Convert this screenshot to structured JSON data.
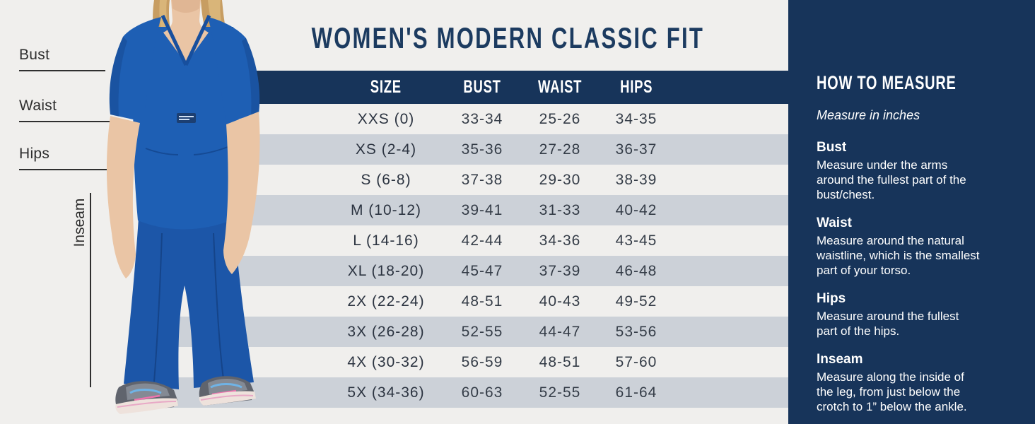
{
  "page": {
    "title": "WOMEN'S MODERN CLASSIC FIT"
  },
  "figure_labels": {
    "bust": "Bust",
    "waist": "Waist",
    "hips": "Hips",
    "inseam": "Inseam"
  },
  "table": {
    "headers": [
      "SIZE",
      "BUST",
      "WAIST",
      "HIPS"
    ],
    "rows": [
      {
        "size": "XXS (0)",
        "bust": "33-34",
        "waist": "25-26",
        "hips": "34-35"
      },
      {
        "size": "XS (2-4)",
        "bust": "35-36",
        "waist": "27-28",
        "hips": "36-37"
      },
      {
        "size": "S (6-8)",
        "bust": "37-38",
        "waist": "29-30",
        "hips": "38-39"
      },
      {
        "size": "M (10-12)",
        "bust": "39-41",
        "waist": "31-33",
        "hips": "40-42"
      },
      {
        "size": "L (14-16)",
        "bust": "42-44",
        "waist": "34-36",
        "hips": "43-45"
      },
      {
        "size": "XL (18-20)",
        "bust": "45-47",
        "waist": "37-39",
        "hips": "46-48"
      },
      {
        "size": "2X (22-24)",
        "bust": "48-51",
        "waist": "40-43",
        "hips": "49-52"
      },
      {
        "size": "3X (26-28)",
        "bust": "52-55",
        "waist": "44-47",
        "hips": "53-56"
      },
      {
        "size": "4X (30-32)",
        "bust": "56-59",
        "waist": "48-51",
        "hips": "57-60"
      },
      {
        "size": "5X (34-36)",
        "bust": "60-63",
        "waist": "52-55",
        "hips": "61-64"
      }
    ]
  },
  "measure_panel": {
    "title": "HOW TO MEASURE",
    "subtitle": "Measure in inches",
    "sections": [
      {
        "title": "Bust",
        "lines": [
          "Measure under the arms",
          "around the fullest part of the",
          "bust/chest."
        ]
      },
      {
        "title": "Waist",
        "lines": [
          "Measure around the natural",
          "waistline, which is the smallest",
          "part of your torso."
        ]
      },
      {
        "title": "Hips",
        "lines": [
          "Measure around the fullest",
          "part of the hips."
        ]
      },
      {
        "title": "Inseam",
        "lines": [
          "Measure along the inside of",
          "the leg, from just below the",
          "crotch to 1” below the ankle."
        ]
      }
    ]
  },
  "colors": {
    "navy": "#17345a",
    "background": "#f0efed",
    "stripe_gray": "#ccd1d8",
    "title_text": "#1c3b60",
    "scrub_blue": "#1e5fb4",
    "table_text": "#343c47"
  }
}
